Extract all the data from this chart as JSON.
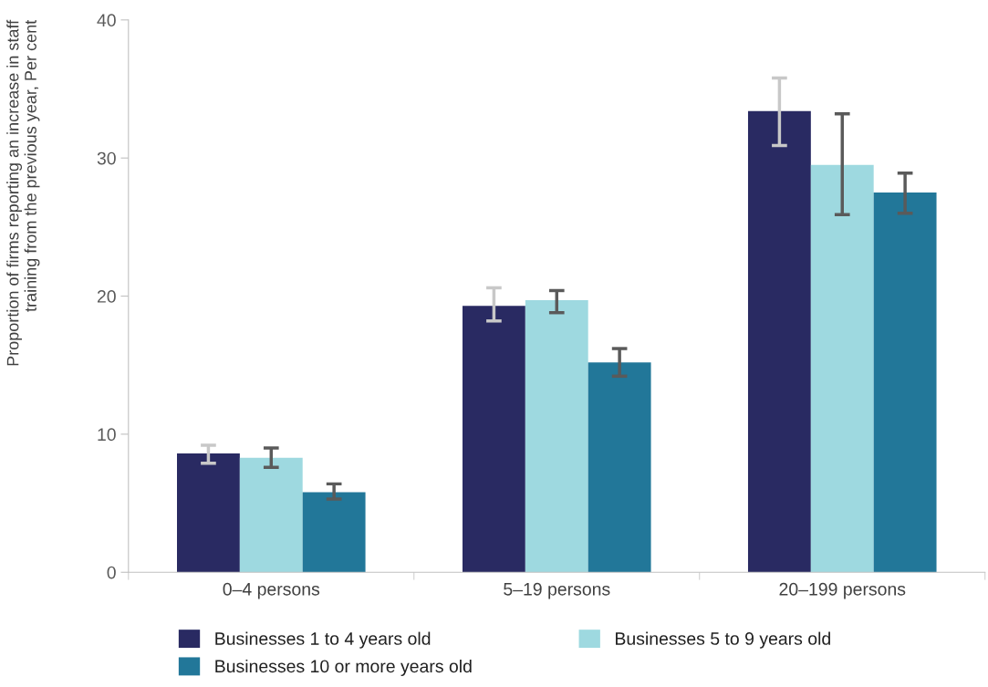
{
  "chart_data": {
    "type": "bar",
    "ylabel": "Proportion of firms reporting an increase in staff\ntraining from the previous year, Per cent",
    "categories": [
      "0–4 persons",
      "5–19 persons",
      "20–199 persons"
    ],
    "series": [
      {
        "name": "Businesses 1 to 4 years old",
        "color": "#292a62",
        "values": [
          8.6,
          19.3,
          33.4
        ],
        "errors": [
          [
            7.9,
            9.2
          ],
          [
            18.2,
            20.6
          ],
          [
            30.9,
            35.8
          ]
        ]
      },
      {
        "name": "Businesses 5 to 9 years old",
        "color": "#9ed9e0",
        "values": [
          8.3,
          19.7,
          29.5
        ],
        "errors": [
          [
            7.6,
            9.0
          ],
          [
            18.8,
            20.4
          ],
          [
            25.9,
            33.2
          ]
        ]
      },
      {
        "name": "Businesses 10 or more years old",
        "color": "#227799",
        "values": [
          5.8,
          15.2,
          27.5
        ],
        "errors": [
          [
            5.3,
            6.4
          ],
          [
            14.2,
            16.2
          ],
          [
            26.0,
            28.9
          ]
        ]
      }
    ],
    "ylim": [
      0,
      40
    ],
    "yticks": [
      0,
      10,
      20,
      30,
      40
    ],
    "grid": false,
    "legend": "bottom"
  }
}
